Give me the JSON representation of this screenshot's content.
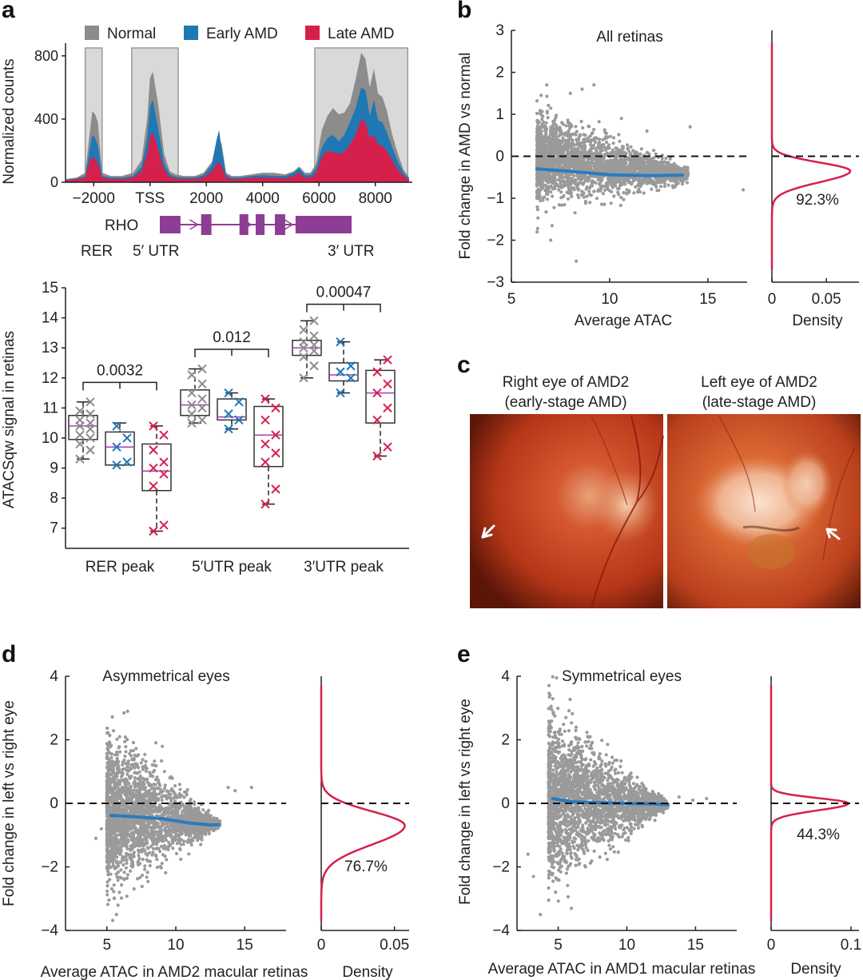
{
  "panel_labels": [
    "a",
    "b",
    "c",
    "d",
    "e"
  ],
  "colors": {
    "normal": "#8c8c8c",
    "early_amd": "#1f77b4",
    "late_amd": "#d6204c",
    "fit": "#2c7bbf",
    "density": "#d6204c",
    "gene_model": "#8e3d96",
    "scatter": "#9a9a9a",
    "box_median": "#a040b0"
  },
  "chart_data": [
    {
      "id": "a_top",
      "type": "area",
      "ylabel": "Normalized counts",
      "xlim": [
        -3000,
        9200
      ],
      "ylim": [
        0,
        850
      ],
      "xtick_values": [
        -2000,
        0,
        2000,
        4000,
        6000,
        8000
      ],
      "xtick_labels": [
        "−2000",
        "TSS",
        "2000",
        "4000",
        "6000",
        "8000"
      ],
      "ytick_values": [
        0,
        400,
        800
      ],
      "ytick_labels": [
        "0",
        "400",
        "800"
      ],
      "legend": [
        "Normal",
        "Early AMD",
        "Late AMD"
      ],
      "legend_position": "top",
      "highlight_regions": [
        [
          -2300,
          -1700
        ],
        [
          -650,
          1000
        ],
        [
          5850,
          9150
        ]
      ],
      "series": [
        {
          "name": "Normal",
          "x": [
            -3000,
            -2600,
            -2300,
            -2150,
            -2050,
            -1950,
            -1850,
            -1700,
            -1400,
            -1000,
            -600,
            -300,
            -100,
            0,
            100,
            300,
            500,
            700,
            900,
            1200,
            1600,
            1900,
            2200,
            2350,
            2450,
            2550,
            2700,
            2900,
            3200,
            3600,
            4000,
            4400,
            4800,
            5100,
            5300,
            5500,
            5700,
            5900,
            6100,
            6300,
            6500,
            6700,
            6900,
            7100,
            7300,
            7500,
            7650,
            7800,
            7950,
            8100,
            8250,
            8400,
            8600,
            8800,
            9000,
            9200
          ],
          "y": [
            20,
            30,
            60,
            300,
            450,
            430,
            380,
            60,
            40,
            40,
            60,
            140,
            400,
            660,
            700,
            480,
            180,
            70,
            50,
            40,
            40,
            60,
            130,
            250,
            280,
            240,
            60,
            40,
            40,
            50,
            60,
            60,
            50,
            70,
            100,
            60,
            60,
            120,
            330,
            420,
            470,
            430,
            440,
            500,
            650,
            820,
            780,
            600,
            720,
            560,
            540,
            460,
            300,
            180,
            80,
            30
          ]
        },
        {
          "name": "Early AMD",
          "x": [
            -3000,
            -2600,
            -2300,
            -2150,
            -2050,
            -1950,
            -1850,
            -1700,
            -1400,
            -1000,
            -600,
            -300,
            -100,
            0,
            100,
            300,
            500,
            700,
            900,
            1200,
            1600,
            1900,
            2200,
            2350,
            2450,
            2550,
            2700,
            2900,
            3200,
            3600,
            4000,
            4400,
            4800,
            5100,
            5300,
            5500,
            5700,
            5900,
            6100,
            6300,
            6500,
            6700,
            6900,
            7100,
            7300,
            7500,
            7650,
            7800,
            7950,
            8100,
            8250,
            8400,
            8600,
            8800,
            9000,
            9200
          ],
          "y": [
            15,
            25,
            40,
            200,
            300,
            280,
            230,
            40,
            30,
            30,
            40,
            100,
            280,
            480,
            520,
            330,
            120,
            50,
            35,
            30,
            30,
            45,
            110,
            260,
            330,
            200,
            45,
            30,
            30,
            40,
            45,
            40,
            40,
            60,
            90,
            45,
            45,
            90,
            220,
            280,
            300,
            260,
            300,
            380,
            470,
            600,
            580,
            420,
            520,
            390,
            380,
            320,
            220,
            130,
            60,
            25
          ]
        },
        {
          "name": "Late AMD",
          "x": [
            -3000,
            -2600,
            -2300,
            -2150,
            -2050,
            -1950,
            -1850,
            -1700,
            -1400,
            -1000,
            -600,
            -300,
            -100,
            0,
            100,
            300,
            500,
            700,
            900,
            1200,
            1600,
            1900,
            2200,
            2350,
            2450,
            2550,
            2700,
            2900,
            3200,
            3600,
            4000,
            4400,
            4800,
            5100,
            5300,
            5500,
            5700,
            5900,
            6100,
            6300,
            6500,
            6700,
            6900,
            7100,
            7300,
            7500,
            7650,
            7800,
            7950,
            8100,
            8250,
            8400,
            8600,
            8800,
            9000,
            9200
          ],
          "y": [
            10,
            20,
            30,
            130,
            160,
            150,
            120,
            30,
            20,
            20,
            30,
            70,
            180,
            290,
            320,
            200,
            80,
            35,
            25,
            20,
            20,
            30,
            70,
            110,
            130,
            100,
            30,
            20,
            20,
            30,
            30,
            30,
            25,
            40,
            60,
            30,
            30,
            60,
            160,
            200,
            190,
            180,
            190,
            240,
            300,
            400,
            380,
            280,
            300,
            240,
            230,
            200,
            140,
            80,
            40,
            15
          ]
        }
      ],
      "gene_model": {
        "gene": "RHO",
        "exons": [
          [
            -200,
            500
          ],
          [
            1200,
            1550
          ],
          [
            2500,
            2800
          ],
          [
            3050,
            3350
          ],
          [
            3700,
            4050
          ],
          [
            4400,
            6300
          ]
        ],
        "labels": [
          "RHO",
          "RER",
          "5′ UTR",
          "3′ UTR"
        ]
      }
    },
    {
      "id": "a_box",
      "type": "box",
      "ylabel": "ATACSqw signal in retinas",
      "ylim": [
        6.7,
        15
      ],
      "yticks": [
        7,
        8,
        9,
        10,
        11,
        12,
        13,
        14,
        15
      ],
      "categories": [
        "RER peak",
        "5′UTR peak",
        "3′UTR peak"
      ],
      "series_names": [
        "Normal",
        "Early AMD",
        "Late AMD"
      ],
      "boxes": [
        {
          "category": "RER peak",
          "series": "Normal",
          "whisker": [
            9.3,
            11.2
          ],
          "q1": 9.95,
          "median": 10.4,
          "q3": 10.75,
          "points": [
            9.3,
            9.6,
            9.8,
            10.0,
            10.1,
            10.3,
            10.4,
            10.5,
            10.6,
            10.8,
            10.9,
            11.2
          ]
        },
        {
          "category": "RER peak",
          "series": "Early AMD",
          "whisker": [
            9.1,
            10.5
          ],
          "q1": 9.1,
          "median": 9.7,
          "q3": 10.2,
          "points": [
            9.1,
            9.2,
            9.7,
            10.0,
            10.4
          ]
        },
        {
          "category": "RER peak",
          "series": "Late AMD",
          "whisker": [
            6.9,
            10.4
          ],
          "q1": 8.25,
          "median": 8.9,
          "q3": 9.8,
          "points": [
            6.9,
            7.1,
            8.4,
            8.8,
            9.0,
            9.2,
            9.6,
            10.1,
            10.4
          ]
        },
        {
          "category": "5′UTR peak",
          "series": "Normal",
          "whisker": [
            10.5,
            12.3
          ],
          "q1": 10.75,
          "median": 11.1,
          "q3": 11.6,
          "points": [
            10.5,
            10.6,
            10.8,
            11.0,
            11.1,
            11.3,
            11.5,
            11.8,
            12.1,
            12.3
          ]
        },
        {
          "category": "5′UTR peak",
          "series": "Early AMD",
          "whisker": [
            10.3,
            11.5
          ],
          "q1": 10.6,
          "median": 10.7,
          "q3": 11.3,
          "points": [
            10.3,
            10.6,
            10.8,
            11.2,
            11.5
          ]
        },
        {
          "category": "5′UTR peak",
          "series": "Late AMD",
          "whisker": [
            7.8,
            11.3
          ],
          "q1": 9.05,
          "median": 10.1,
          "q3": 11.05,
          "points": [
            7.8,
            8.3,
            9.2,
            9.5,
            9.8,
            10.1,
            10.6,
            11.0,
            11.3
          ]
        },
        {
          "category": "3′UTR peak",
          "series": "Normal",
          "whisker": [
            12.0,
            13.9
          ],
          "q1": 12.75,
          "median": 13.0,
          "q3": 13.25,
          "points": [
            12.0,
            12.4,
            12.7,
            12.9,
            13.0,
            13.1,
            13.2,
            13.4,
            13.6,
            13.9
          ]
        },
        {
          "category": "3′UTR peak",
          "series": "Early AMD",
          "whisker": [
            11.5,
            13.2
          ],
          "q1": 11.9,
          "median": 12.1,
          "q3": 12.5,
          "points": [
            11.5,
            12.0,
            12.2,
            12.4,
            13.2
          ]
        },
        {
          "category": "3′UTR peak",
          "series": "Late AMD",
          "whisker": [
            9.4,
            12.6
          ],
          "q1": 10.5,
          "median": 11.5,
          "q3": 12.25,
          "points": [
            9.4,
            9.7,
            10.6,
            11.0,
            11.5,
            11.8,
            12.2,
            12.6
          ]
        }
      ],
      "significance": [
        {
          "category": "RER peak",
          "label": "0.0032",
          "y": 11.85
        },
        {
          "category": "5′UTR peak",
          "label": "0.012",
          "y": 12.95
        },
        {
          "category": "3′UTR peak",
          "label": "0.00047",
          "y": 14.45
        }
      ]
    },
    {
      "id": "b",
      "type": "scatter",
      "title": "All retinas",
      "xlabel": "Average ATAC",
      "ylabel": "Fold change in AMD vs normal",
      "xlim": [
        5,
        17
      ],
      "ylim": [
        -3,
        3
      ],
      "xticks": [
        5,
        10,
        15
      ],
      "yticks": [
        -3,
        -2,
        -1,
        0,
        1,
        2,
        3
      ],
      "cloud": {
        "x_start": 6.3,
        "x_end": 14.0,
        "center_start": -0.05,
        "center_end": -0.45,
        "spread_start": 1.2,
        "spread_end": 0.2
      },
      "outliers": [
        [
          6.8,
          1.7
        ],
        [
          8.0,
          1.5
        ],
        [
          8.6,
          1.6
        ],
        [
          9.2,
          1.7
        ],
        [
          10.6,
          0.9
        ],
        [
          11.9,
          0.6
        ],
        [
          14.1,
          0.7
        ],
        [
          7.0,
          -2.0
        ],
        [
          8.3,
          -2.5
        ],
        [
          16.8,
          -0.8
        ]
      ],
      "fit_line": {
        "x": [
          6.3,
          8,
          10,
          12,
          13.7
        ],
        "y": [
          -0.3,
          -0.36,
          -0.44,
          -0.46,
          -0.45
        ]
      },
      "reference_line_y": 0,
      "density": {
        "xlabel": "Density",
        "xlim": [
          0,
          0.08
        ],
        "xticks": [
          0,
          0.05
        ],
        "xtick_labels": [
          "0",
          "0.05"
        ],
        "peak_y": -0.35,
        "sigma": 0.27,
        "peak_density": 0.072,
        "percentage": "92.3%"
      }
    },
    {
      "id": "c",
      "type": "image",
      "images": [
        {
          "title": "Right eye of AMD2",
          "subtitle": "(early-stage AMD)"
        },
        {
          "title": "Left eye of AMD2",
          "subtitle": "(late-stage AMD)"
        }
      ]
    },
    {
      "id": "d",
      "type": "scatter",
      "title": "Asymmetrical eyes",
      "xlabel": "Average ATAC in AMD2 macular retinas",
      "ylabel": "Fold change in left vs right eye",
      "xlim": [
        2,
        18
      ],
      "ylim": [
        -4,
        4
      ],
      "xticks": [
        5,
        10,
        15
      ],
      "yticks": [
        -4,
        -2,
        0,
        2,
        4
      ],
      "cloud": {
        "x_start": 5.0,
        "x_end": 13.2,
        "center_start": -0.3,
        "center_end": -0.65,
        "spread_start": 2.7,
        "spread_end": 0.1
      },
      "outliers": [
        [
          4.2,
          -1.1
        ],
        [
          5.2,
          1.9
        ],
        [
          6.5,
          2.9
        ],
        [
          13.8,
          0.5
        ],
        [
          14.3,
          0.4
        ],
        [
          15.5,
          0.5
        ],
        [
          5.7,
          -3.5
        ],
        [
          4.6,
          -0.8
        ]
      ],
      "fit_line": {
        "x": [
          5.3,
          7,
          9,
          11,
          12.5,
          13.1
        ],
        "y": [
          -0.38,
          -0.42,
          -0.48,
          -0.62,
          -0.68,
          -0.67
        ]
      },
      "reference_line_y": 0,
      "density": {
        "xlabel": "Density",
        "xlim": [
          0,
          0.06
        ],
        "xticks": [
          0,
          0.05
        ],
        "xtick_labels": [
          "0",
          "0.05"
        ],
        "peak_y": -0.7,
        "sigma": 0.6,
        "peak_density": 0.057,
        "percentage": "76.7%"
      }
    },
    {
      "id": "e",
      "type": "scatter",
      "title": "Symmetrical eyes",
      "xlabel": "Average ATAC in AMD1 macular retinas",
      "ylabel": "Fold change in left vs right eye",
      "xlim": [
        2,
        18
      ],
      "ylim": [
        -4,
        4
      ],
      "xticks": [
        5,
        10,
        15
      ],
      "yticks": [
        -4,
        -2,
        0,
        2,
        4
      ],
      "cloud": {
        "x_start": 4.3,
        "x_end": 13.0,
        "center_start": 0.1,
        "center_end": -0.05,
        "spread_start": 2.9,
        "spread_end": 0.1
      },
      "outliers": [
        [
          4.4,
          3.4
        ],
        [
          2.8,
          -1.6
        ],
        [
          3.2,
          -2.3
        ],
        [
          3.7,
          -3.5
        ],
        [
          13.8,
          0.2
        ],
        [
          14.8,
          0.1
        ],
        [
          15.8,
          0.15
        ]
      ],
      "fit_line": {
        "x": [
          4.6,
          6,
          8,
          10,
          12,
          13
        ],
        "y": [
          0.15,
          0.05,
          0.02,
          0.0,
          -0.02,
          -0.04
        ]
      },
      "reference_line_y": 0,
      "density": {
        "xlabel": "Density",
        "xlim": [
          0,
          0.11
        ],
        "xticks": [
          0,
          0.1
        ],
        "xtick_labels": [
          "0",
          "0.1"
        ],
        "peak_y": 0.0,
        "sigma": 0.22,
        "peak_density": 0.097,
        "percentage": "44.3%"
      }
    }
  ]
}
